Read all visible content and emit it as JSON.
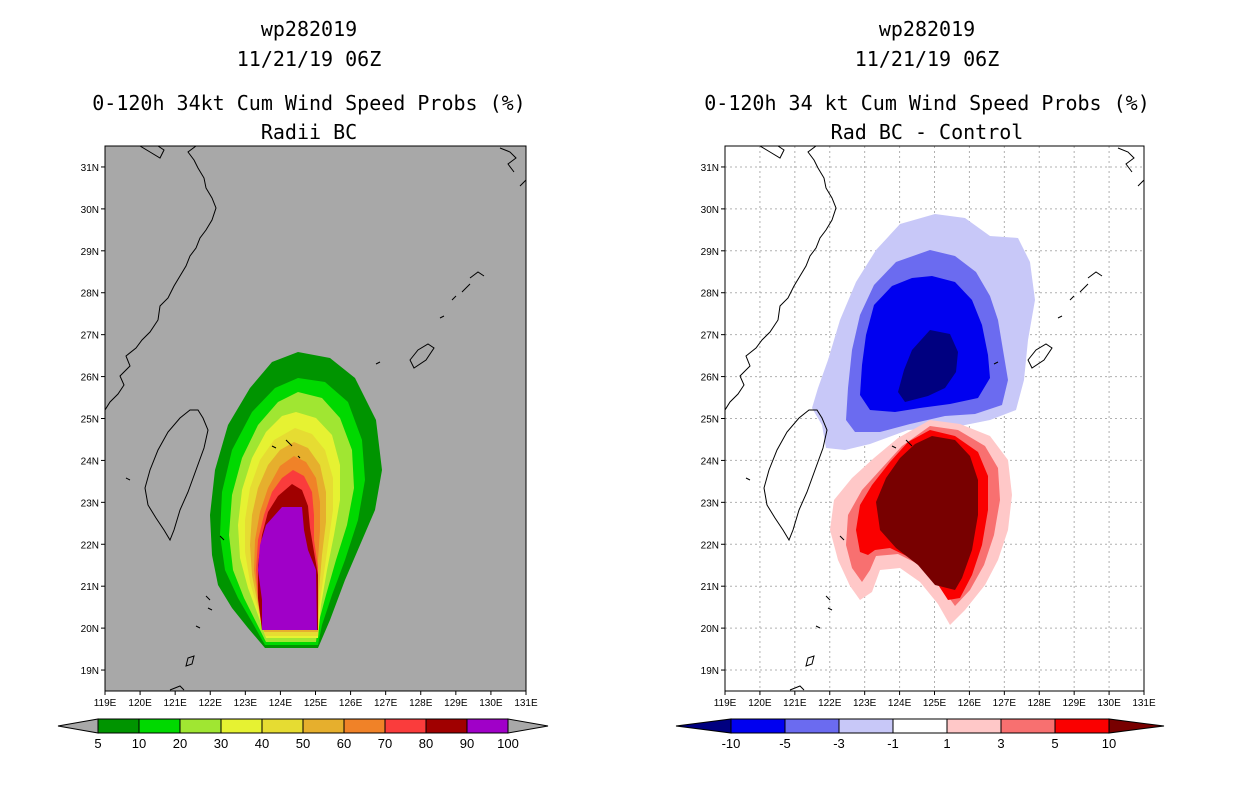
{
  "left_panel": {
    "storm_id": "wp282019",
    "datetime": "11/21/19 06Z",
    "title": "0-120h 34kt Cum Wind Speed Probs (%)",
    "subtitle": "Radii BC",
    "colorbar": {
      "labels": [
        "5",
        "10",
        "20",
        "30",
        "40",
        "50",
        "60",
        "70",
        "80",
        "90",
        "100"
      ],
      "colors": [
        "#009400",
        "#00d900",
        "#a0e632",
        "#e6f232",
        "#e6dc32",
        "#e6af2d",
        "#f08228",
        "#fa3c3c",
        "#a00000",
        "#a000c8"
      ]
    }
  },
  "right_panel": {
    "storm_id": "wp282019",
    "datetime": "11/21/19 06Z",
    "title": "0-120h 34 kt Cum Wind Speed Probs (%)",
    "subtitle": "Rad BC - Control",
    "colorbar": {
      "labels": [
        "-10",
        "-5",
        "-3",
        "-1",
        "1",
        "3",
        "5",
        "10"
      ],
      "colors": [
        "#000080",
        "#0000f0",
        "#6b6bf0",
        "#c8c8f8",
        "#ffffff",
        "#ffc8c8",
        "#f87070",
        "#fa0000",
        "#780000"
      ]
    }
  },
  "axes": {
    "lon_labels": [
      "119E",
      "120E",
      "121E",
      "122E",
      "123E",
      "124E",
      "125E",
      "126E",
      "127E",
      "128E",
      "129E",
      "130E",
      "131E"
    ],
    "lat_labels": [
      "19N",
      "20N",
      "21N",
      "22N",
      "23N",
      "24N",
      "25N",
      "26N",
      "27N",
      "28N",
      "29N",
      "30N",
      "31N"
    ],
    "lon_range": [
      119,
      131
    ],
    "lat_range": [
      18.5,
      31.5
    ]
  },
  "colors": {
    "land_bg": "#a8a8a8",
    "outline": "#000000"
  }
}
